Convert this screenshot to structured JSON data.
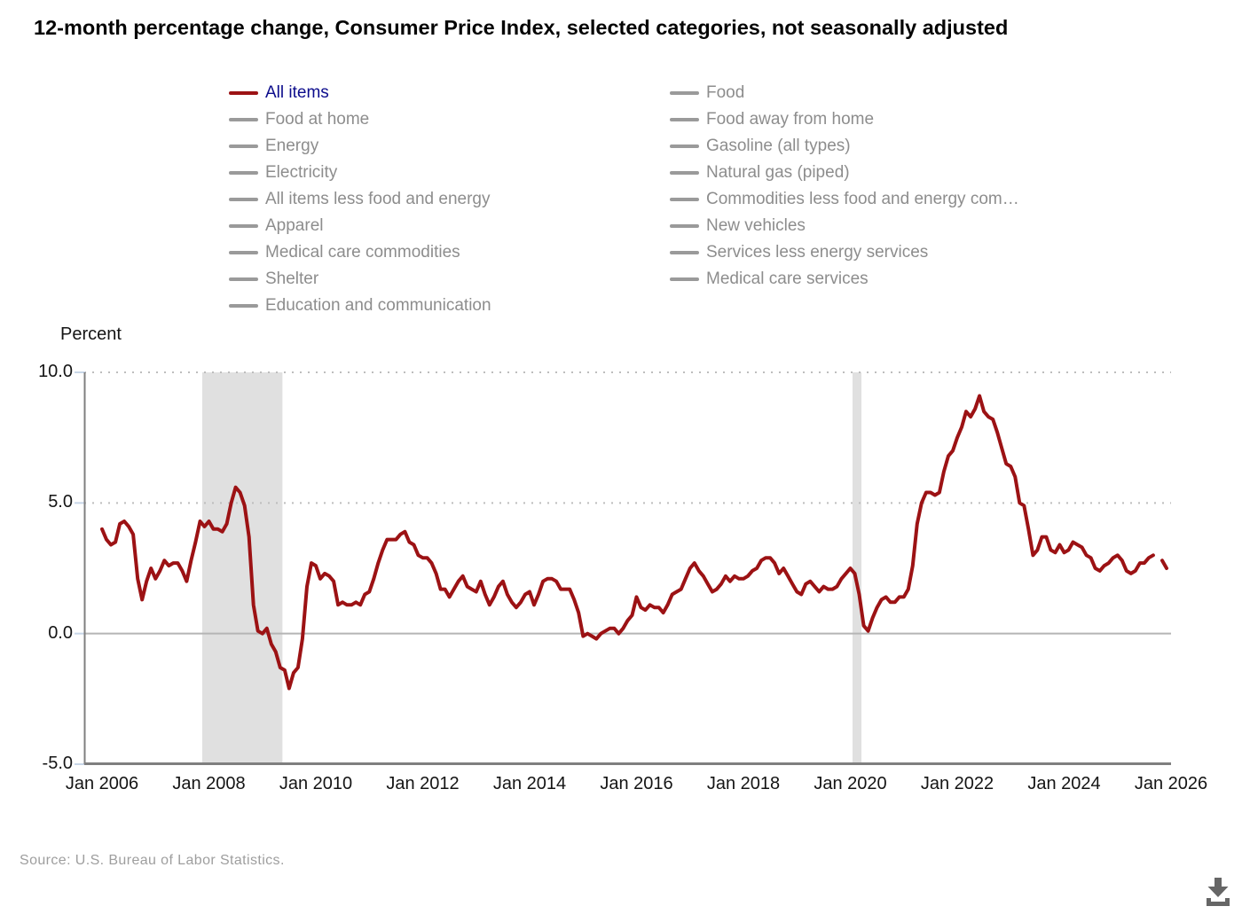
{
  "header": {
    "title": "12-month percentage change, Consumer Price Index, selected categories, not seasonally adjusted"
  },
  "legend": {
    "columns": [
      [
        {
          "label": "All items",
          "active": true
        },
        {
          "label": "Food at home",
          "active": false
        },
        {
          "label": "Energy",
          "active": false
        },
        {
          "label": "Electricity",
          "active": false
        },
        {
          "label": "All items less food and energy",
          "active": false
        },
        {
          "label": "Apparel",
          "active": false
        },
        {
          "label": "Medical care commodities",
          "active": false
        },
        {
          "label": "Shelter",
          "active": false
        },
        {
          "label": "Education and communication",
          "active": false
        }
      ],
      [
        {
          "label": "Food",
          "active": false
        },
        {
          "label": "Food away from home",
          "active": false
        },
        {
          "label": "Gasoline (all types)",
          "active": false
        },
        {
          "label": "Natural gas (piped)",
          "active": false
        },
        {
          "label": "Commodities less food and energy com…",
          "active": false
        },
        {
          "label": "New vehicles",
          "active": false
        },
        {
          "label": "Services less energy services",
          "active": false
        },
        {
          "label": "Medical care services",
          "active": false
        }
      ]
    ]
  },
  "chart": {
    "ylabel": "Percent",
    "y_ticks": [
      "10.0",
      "5.0",
      "0.0",
      "-5.0"
    ],
    "x_ticks": [
      "Jan 2006",
      "Jan 2008",
      "Jan 2010",
      "Jan 2012",
      "Jan 2014",
      "Jan 2016",
      "Jan 2018",
      "Jan 2020",
      "Jan 2022",
      "Jan 2024",
      "Jan 2026"
    ]
  },
  "source": {
    "text": "Source: U.S. Bureau of Labor Statistics."
  },
  "colors": {
    "line": "#9c1214",
    "legend_active_text": "#0c0c8c",
    "legend_inactive_text": "#8d8d8d",
    "legend_inactive_swatch": "#9a9a9a",
    "recession_band": "#e0e0e0",
    "axis_line": "#7f7f7f",
    "zero_line": "#b5b5b5",
    "dotted_grid": "#bdbdbd",
    "tick_mark": "#c8d6e8",
    "icon_gray": "#666666"
  },
  "chart_data": {
    "type": "line",
    "title": "12-month percentage change, Consumer Price Index, selected categories, not seasonally adjusted",
    "xlabel": "",
    "ylabel": "Percent",
    "ylim": [
      -5,
      10
    ],
    "x_start": "2006-01",
    "x_end": "2025-12",
    "frequency": "monthly",
    "grid": "horizontal dotted at 5.0 and 10.0, solid line at 0.0",
    "legend_position": "top, two columns, only 'All items' series visible",
    "recession_bands": [
      {
        "from": "2007-12",
        "to": "2009-06"
      },
      {
        "from": "2020-02",
        "to": "2020-04"
      }
    ],
    "missing_months": [
      "2025-10"
    ],
    "series": [
      {
        "name": "All items",
        "values_by_year": {
          "2006": [
            4.0,
            3.6,
            3.4,
            3.5,
            4.2,
            4.3,
            4.1,
            3.8,
            2.1,
            1.3,
            2.0,
            2.5
          ],
          "2007": [
            2.1,
            2.4,
            2.8,
            2.6,
            2.7,
            2.7,
            2.4,
            2.0,
            2.8,
            3.5,
            4.3,
            4.1
          ],
          "2008": [
            4.3,
            4.0,
            4.0,
            3.9,
            4.2,
            5.0,
            5.6,
            5.4,
            4.9,
            3.7,
            1.1,
            0.1
          ],
          "2009": [
            0.0,
            0.2,
            -0.4,
            -0.7,
            -1.3,
            -1.4,
            -2.1,
            -1.5,
            -1.3,
            -0.2,
            1.8,
            2.7
          ],
          "2010": [
            2.6,
            2.1,
            2.3,
            2.2,
            2.0,
            1.1,
            1.2,
            1.1,
            1.1,
            1.2,
            1.1,
            1.5
          ],
          "2011": [
            1.6,
            2.1,
            2.7,
            3.2,
            3.6,
            3.6,
            3.6,
            3.8,
            3.9,
            3.5,
            3.4,
            3.0
          ],
          "2012": [
            2.9,
            2.9,
            2.7,
            2.3,
            1.7,
            1.7,
            1.4,
            1.7,
            2.0,
            2.2,
            1.8,
            1.7
          ],
          "2013": [
            1.6,
            2.0,
            1.5,
            1.1,
            1.4,
            1.8,
            2.0,
            1.5,
            1.2,
            1.0,
            1.2,
            1.5
          ],
          "2014": [
            1.6,
            1.1,
            1.5,
            2.0,
            2.1,
            2.1,
            2.0,
            1.7,
            1.7,
            1.7,
            1.3,
            0.8
          ],
          "2015": [
            -0.1,
            0.0,
            -0.1,
            -0.2,
            0.0,
            0.1,
            0.2,
            0.2,
            0.0,
            0.2,
            0.5,
            0.7
          ],
          "2016": [
            1.4,
            1.0,
            0.9,
            1.1,
            1.0,
            1.0,
            0.8,
            1.1,
            1.5,
            1.6,
            1.7,
            2.1
          ],
          "2017": [
            2.5,
            2.7,
            2.4,
            2.2,
            1.9,
            1.6,
            1.7,
            1.9,
            2.2,
            2.0,
            2.2,
            2.1
          ],
          "2018": [
            2.1,
            2.2,
            2.4,
            2.5,
            2.8,
            2.9,
            2.9,
            2.7,
            2.3,
            2.5,
            2.2,
            1.9
          ],
          "2019": [
            1.6,
            1.5,
            1.9,
            2.0,
            1.8,
            1.6,
            1.8,
            1.7,
            1.7,
            1.8,
            2.1,
            2.3
          ],
          "2020": [
            2.5,
            2.3,
            1.5,
            0.3,
            0.1,
            0.6,
            1.0,
            1.3,
            1.4,
            1.2,
            1.2,
            1.4
          ],
          "2021": [
            1.4,
            1.7,
            2.6,
            4.2,
            5.0,
            5.4,
            5.4,
            5.3,
            5.4,
            6.2,
            6.8,
            7.0
          ],
          "2022": [
            7.5,
            7.9,
            8.5,
            8.3,
            8.6,
            9.1,
            8.5,
            8.3,
            8.2,
            7.7,
            7.1,
            6.5
          ],
          "2023": [
            6.4,
            6.0,
            5.0,
            4.9,
            4.0,
            3.0,
            3.2,
            3.7,
            3.7,
            3.2,
            3.1,
            3.4
          ],
          "2024": [
            3.1,
            3.2,
            3.5,
            3.4,
            3.3,
            3.0,
            2.9,
            2.5,
            2.4,
            2.6,
            2.7,
            2.9
          ],
          "2025": [
            3.0,
            2.8,
            2.4,
            2.3,
            2.4,
            2.7,
            2.7,
            2.9,
            3.0,
            null,
            2.8,
            2.5
          ]
        }
      }
    ],
    "y_tick_values": [
      10,
      5,
      0,
      -5
    ],
    "y_tick_labels": [
      "10.0",
      "5.0",
      "0.0",
      "-5.0"
    ],
    "x_tick_labels": [
      "Jan 2006",
      "Jan 2008",
      "Jan 2010",
      "Jan 2012",
      "Jan 2014",
      "Jan 2016",
      "Jan 2018",
      "Jan 2020",
      "Jan 2022",
      "Jan 2024",
      "Jan 2026"
    ]
  }
}
